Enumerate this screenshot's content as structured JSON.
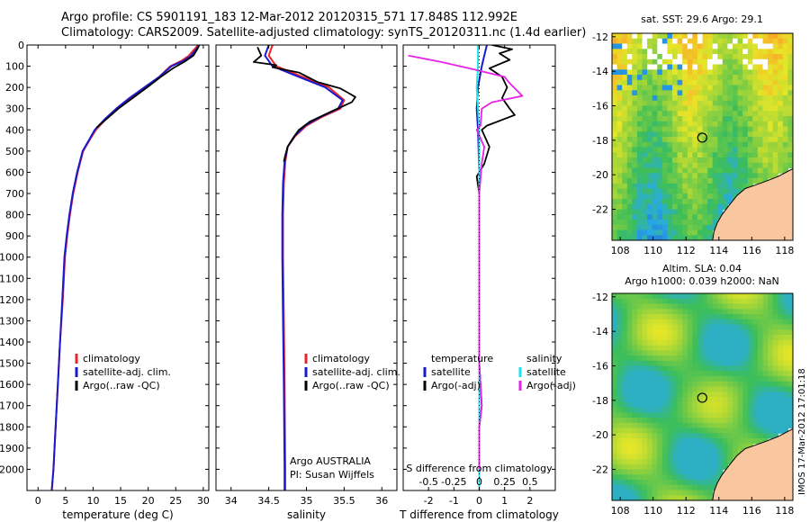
{
  "header": {
    "line1": "Argo profile: CS 5901191_183 12-Mar-2012 20120315_571 17.848S 112.992E",
    "line2": "Climatology: CARS2009. Satellite-adjusted climatology: synTS_20120311.nc (1.4d earlier)"
  },
  "colors": {
    "climatology": "#e8242a",
    "satellite": "#1a1acd",
    "argo": "#000000",
    "argo_adj": "#e820e8",
    "sat_cyan": "#19e6ee",
    "land": "#f9c79f"
  },
  "chart_data": [
    {
      "type": "line",
      "id": "temperature",
      "xlabel": "temperature (deg C)",
      "ylabel": "",
      "xlim": [
        -2,
        31
      ],
      "ylim": [
        2100,
        0
      ],
      "xticks": [
        0,
        5,
        10,
        15,
        20,
        25,
        30
      ],
      "yticks": [
        0,
        100,
        200,
        300,
        400,
        500,
        600,
        700,
        800,
        900,
        1000,
        1100,
        1200,
        1300,
        1400,
        1500,
        1600,
        1700,
        1800,
        1900,
        2000
      ],
      "legend": [
        "climatology",
        "satellite-adj. clim.",
        "Argo(..raw -QC)"
      ],
      "series": [
        {
          "name": "climatology",
          "role": "climatology",
          "points": [
            [
              29.1,
              0
            ],
            [
              28.2,
              25
            ],
            [
              27.4,
              50
            ],
            [
              26,
              75
            ],
            [
              24,
              100
            ],
            [
              22,
              150
            ],
            [
              19.5,
              200
            ],
            [
              17,
              250
            ],
            [
              14.5,
              300
            ],
            [
              12.3,
              350
            ],
            [
              10.5,
              400
            ],
            [
              9.3,
              450
            ],
            [
              8.2,
              500
            ],
            [
              7.2,
              600
            ],
            [
              6.4,
              700
            ],
            [
              5.8,
              800
            ],
            [
              5.3,
              900
            ],
            [
              4.9,
              1000
            ],
            [
              4.5,
              1200
            ],
            [
              4.0,
              1400
            ],
            [
              3.6,
              1600
            ],
            [
              3.2,
              1800
            ],
            [
              2.8,
              2000
            ],
            [
              2.5,
              2100
            ]
          ]
        },
        {
          "name": "satellite-adj. clim.",
          "role": "satellite",
          "points": [
            [
              29.3,
              0
            ],
            [
              28.6,
              25
            ],
            [
              27.8,
              50
            ],
            [
              26.4,
              75
            ],
            [
              24.2,
              100
            ],
            [
              22,
              150
            ],
            [
              19.3,
              200
            ],
            [
              16.6,
              250
            ],
            [
              14.2,
              300
            ],
            [
              12.1,
              350
            ],
            [
              10.3,
              400
            ],
            [
              9.2,
              450
            ],
            [
              8.1,
              500
            ],
            [
              7.1,
              600
            ],
            [
              6.3,
              700
            ],
            [
              5.7,
              800
            ],
            [
              5.2,
              900
            ],
            [
              4.8,
              1000
            ],
            [
              4.4,
              1200
            ],
            [
              4.0,
              1400
            ],
            [
              3.6,
              1600
            ],
            [
              3.2,
              1800
            ],
            [
              2.8,
              2000
            ],
            [
              2.5,
              2100
            ]
          ]
        },
        {
          "name": "Argo(..raw -QC)",
          "role": "argo",
          "points": [
            [
              29.2,
              5
            ],
            [
              28.8,
              25
            ],
            [
              28.2,
              50
            ],
            [
              26.5,
              80
            ],
            [
              24.5,
              110
            ],
            [
              22.3,
              150
            ],
            [
              19.8,
              200
            ],
            [
              17.2,
              250
            ],
            [
              14.6,
              300
            ],
            [
              12.4,
              350
            ],
            [
              10.6,
              390
            ]
          ]
        }
      ]
    },
    {
      "type": "line",
      "id": "salinity",
      "xlabel": "salinity",
      "ylabel": "",
      "xlim": [
        33.8,
        36.2
      ],
      "ylim": [
        2100,
        0
      ],
      "xticks": [
        34,
        34.5,
        35,
        35.5,
        36
      ],
      "legend": [
        "climatology",
        "satellite-adj. clim.",
        "Argo(..raw -QC)"
      ],
      "annotations": [
        "Argo AUSTRALIA",
        "PI: Susan Wijffels"
      ],
      "series": [
        {
          "name": "climatology",
          "role": "climatology",
          "points": [
            [
              34.55,
              0
            ],
            [
              34.5,
              50
            ],
            [
              34.6,
              100
            ],
            [
              34.95,
              150
            ],
            [
              35.3,
              200
            ],
            [
              35.5,
              260
            ],
            [
              35.45,
              300
            ],
            [
              35.2,
              340
            ],
            [
              35,
              380
            ],
            [
              34.85,
              430
            ],
            [
              34.75,
              480
            ],
            [
              34.72,
              550
            ],
            [
              34.7,
              650
            ],
            [
              34.69,
              800
            ],
            [
              34.69,
              1000
            ],
            [
              34.7,
              1300
            ],
            [
              34.71,
              1600
            ],
            [
              34.72,
              2000
            ],
            [
              34.72,
              2100
            ]
          ]
        },
        {
          "name": "satellite-adj. clim.",
          "role": "satellite",
          "points": [
            [
              34.5,
              0
            ],
            [
              34.45,
              50
            ],
            [
              34.55,
              100
            ],
            [
              34.9,
              150
            ],
            [
              35.25,
              200
            ],
            [
              35.48,
              260
            ],
            [
              35.42,
              300
            ],
            [
              35.18,
              340
            ],
            [
              34.98,
              380
            ],
            [
              34.84,
              430
            ],
            [
              34.75,
              480
            ],
            [
              34.71,
              550
            ],
            [
              34.69,
              650
            ],
            [
              34.68,
              800
            ],
            [
              34.68,
              1000
            ],
            [
              34.69,
              1300
            ],
            [
              34.7,
              1600
            ],
            [
              34.71,
              2000
            ],
            [
              34.71,
              2100
            ]
          ]
        },
        {
          "name": "Argo(..raw -QC)",
          "role": "argo",
          "points": [
            [
              34.35,
              10
            ],
            [
              34.4,
              50
            ],
            [
              34.3,
              80
            ],
            [
              34.6,
              95
            ],
            [
              34.55,
              105
            ],
            [
              34.9,
              130
            ],
            [
              35.15,
              175
            ],
            [
              35.45,
              205
            ],
            [
              35.55,
              225
            ],
            [
              35.65,
              245
            ],
            [
              35.6,
              270
            ],
            [
              35.35,
              310
            ],
            [
              35.05,
              360
            ],
            [
              34.9,
              400
            ],
            [
              34.82,
              440
            ],
            [
              34.75,
              480
            ],
            [
              34.72,
              520
            ],
            [
              34.7,
              550
            ]
          ]
        }
      ]
    },
    {
      "type": "line",
      "id": "difference",
      "xlabel": "T difference from climatology",
      "ylabel": "",
      "xlim": [
        -3,
        3
      ],
      "ylim": [
        2100,
        0
      ],
      "xticks": [
        -2,
        -1,
        0,
        1,
        2
      ],
      "secondary_xlabel": "S difference from climatology",
      "secondary_xticks": [
        -0.5,
        -0.25,
        0,
        0.25,
        0.5
      ],
      "legend_temperature": [
        "temperature",
        "satellite",
        "Argo(-adj)"
      ],
      "legend_salinity": [
        "salinity",
        "satellite",
        "Argo(-adj)"
      ],
      "series": [
        {
          "name": "satellite",
          "role": "t_satellite",
          "points": [
            [
              0.3,
              0
            ],
            [
              0.2,
              50
            ],
            [
              0.1,
              100
            ],
            [
              -0.05,
              200
            ],
            [
              -0.1,
              300
            ],
            [
              -0.05,
              400
            ],
            [
              0,
              600
            ],
            [
              0,
              2100
            ]
          ]
        },
        {
          "name": "Argo(-adj)",
          "role": "t_argo",
          "points": [
            [
              0.5,
              0
            ],
            [
              1.3,
              20
            ],
            [
              0.8,
              40
            ],
            [
              1.2,
              70
            ],
            [
              0.4,
              110
            ],
            [
              0.9,
              150
            ],
            [
              1.1,
              200
            ],
            [
              0.9,
              250
            ],
            [
              1.2,
              300
            ],
            [
              1.4,
              330
            ],
            [
              0.3,
              380
            ],
            [
              0.1,
              400
            ],
            [
              0.4,
              480
            ],
            [
              0.2,
              560
            ],
            [
              -0.1,
              620
            ],
            [
              0,
              700
            ],
            [
              0,
              1500
            ],
            [
              0.1,
              1700
            ],
            [
              0,
              1800
            ],
            [
              0,
              2000
            ]
          ]
        },
        {
          "name": "satellite",
          "role": "s_satellite",
          "points": [
            [
              -0.05,
              0
            ],
            [
              -0.05,
              100
            ],
            [
              -0.1,
              200
            ],
            [
              -0.05,
              300
            ],
            [
              0,
              400
            ],
            [
              0,
              2100
            ]
          ]
        },
        {
          "name": "Argo(-adj)",
          "role": "s_argo",
          "points": [
            [
              -2.8,
              50
            ],
            [
              -1.5,
              80
            ],
            [
              -0.4,
              110
            ],
            [
              1.0,
              150
            ],
            [
              1.2,
              180
            ],
            [
              1.7,
              240
            ],
            [
              0.5,
              270
            ],
            [
              0.1,
              300
            ],
            [
              0.05,
              380
            ],
            [
              -0.1,
              400
            ],
            [
              0.2,
              480
            ],
            [
              0.1,
              560
            ],
            [
              0,
              700
            ],
            [
              0,
              1500
            ],
            [
              0.1,
              1700
            ],
            [
              0,
              1800
            ],
            [
              0,
              2000
            ]
          ]
        }
      ]
    },
    {
      "type": "heatmap",
      "id": "sst_map",
      "title": "sat. SST: 29.6  Argo: 29.1",
      "xticks": [
        108,
        110,
        112,
        114,
        116,
        118
      ],
      "yticks": [
        -12,
        -14,
        -16,
        -18,
        -20,
        -22
      ],
      "xlim": [
        107.5,
        118.5
      ],
      "ylim": [
        -23.8,
        -11.8
      ],
      "argo_position": [
        112.99,
        -17.85
      ]
    },
    {
      "type": "heatmap",
      "id": "sla_map",
      "title_line1": "Altim. SLA: 0.04",
      "title_line2": "Argo h1000: 0.039  h2000: NaN",
      "xticks": [
        108,
        110,
        112,
        114,
        116,
        118
      ],
      "yticks": [
        -12,
        -14,
        -16,
        -18,
        -20,
        -22
      ],
      "xlim": [
        107.5,
        118.5
      ],
      "ylim": [
        -23.8,
        -11.8
      ],
      "argo_position": [
        112.99,
        -17.85
      ]
    }
  ],
  "credit": "IMOS 17-Mar-2012 17:01:18"
}
